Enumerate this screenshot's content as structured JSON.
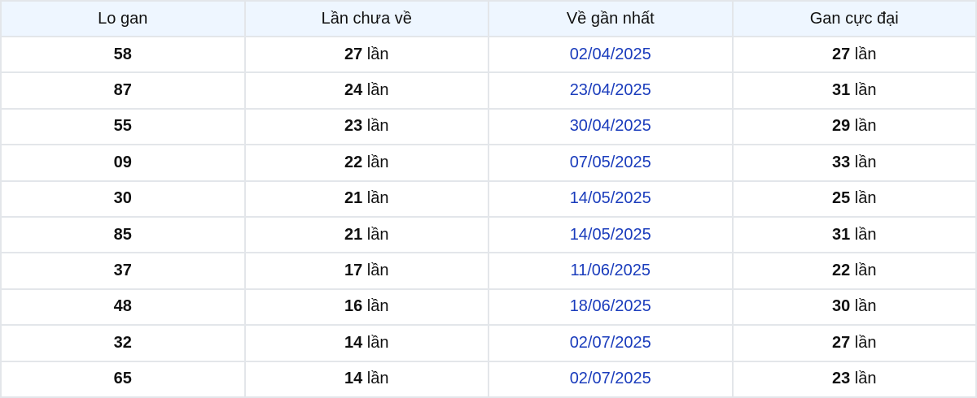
{
  "table": {
    "headers": [
      "Lo gan",
      "Lần chưa về",
      "Về gần nhất",
      "Gan cực đại"
    ],
    "unit": "lần",
    "rows": [
      {
        "lo": "58",
        "missed": "27",
        "last": "02/04/2025",
        "max": "27"
      },
      {
        "lo": "87",
        "missed": "24",
        "last": "23/04/2025",
        "max": "31"
      },
      {
        "lo": "55",
        "missed": "23",
        "last": "30/04/2025",
        "max": "29"
      },
      {
        "lo": "09",
        "missed": "22",
        "last": "07/05/2025",
        "max": "33"
      },
      {
        "lo": "30",
        "missed": "21",
        "last": "14/05/2025",
        "max": "25"
      },
      {
        "lo": "85",
        "missed": "21",
        "last": "14/05/2025",
        "max": "31"
      },
      {
        "lo": "37",
        "missed": "17",
        "last": "11/06/2025",
        "max": "22"
      },
      {
        "lo": "48",
        "missed": "16",
        "last": "18/06/2025",
        "max": "30"
      },
      {
        "lo": "32",
        "missed": "14",
        "last": "02/07/2025",
        "max": "27"
      },
      {
        "lo": "65",
        "missed": "14",
        "last": "02/07/2025",
        "max": "23"
      }
    ]
  },
  "colors": {
    "header_bg": "#eef6ff",
    "date": "#1a3cbc",
    "border": "#e3e6ea"
  }
}
